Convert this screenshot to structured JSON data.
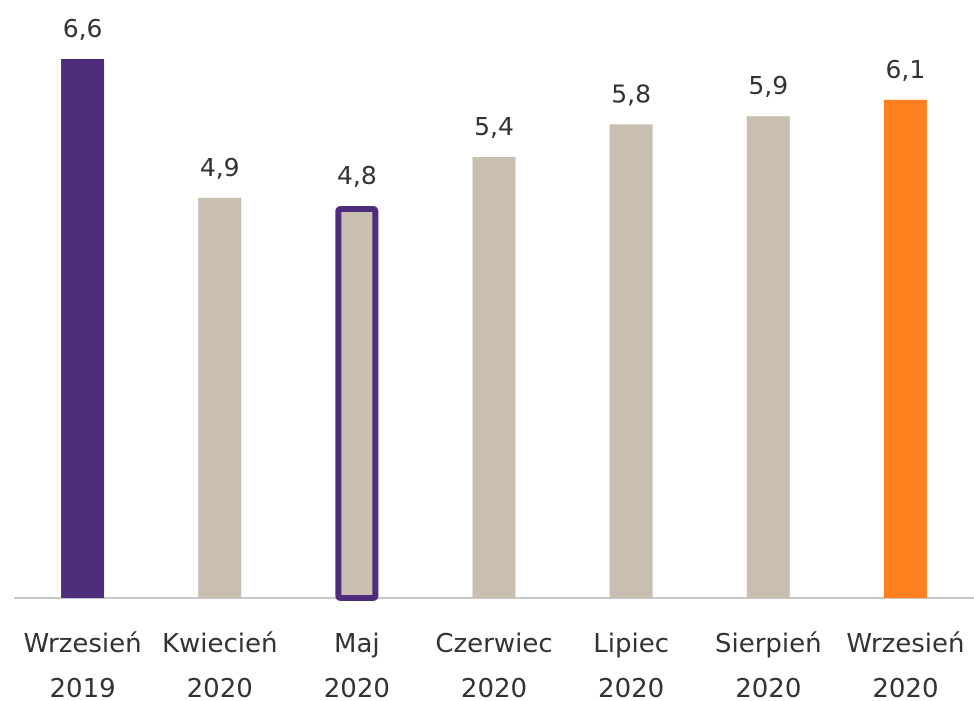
{
  "chart_data": {
    "type": "bar",
    "categories": [
      [
        "Wrzesień",
        "2019"
      ],
      [
        "Kwiecień",
        "2020"
      ],
      [
        "Maj",
        "2020"
      ],
      [
        "Czerwiec",
        "2020"
      ],
      [
        "Lipiec",
        "2020"
      ],
      [
        "Sierpień",
        "2020"
      ],
      [
        "Wrzesień",
        "2020"
      ]
    ],
    "values": [
      6.6,
      4.9,
      4.8,
      5.4,
      5.8,
      5.9,
      6.1
    ],
    "value_labels": [
      "6,6",
      "4,9",
      "4,8",
      "5,4",
      "5,8",
      "5,9",
      "6,1"
    ],
    "bar_styles": [
      "solid",
      "solid",
      "outlined",
      "solid",
      "solid",
      "solid",
      "solid"
    ],
    "bar_colors": [
      "#4e2d7d",
      "#c8bfb0",
      "#c8bfb0",
      "#c8bfb0",
      "#c8bfb0",
      "#c8bfb0",
      "#ff7f1e"
    ],
    "outline_color": "#4e2d7d",
    "ylim": [
      0,
      6.6
    ],
    "grid": false,
    "axis_color": "#c8c8c8"
  }
}
